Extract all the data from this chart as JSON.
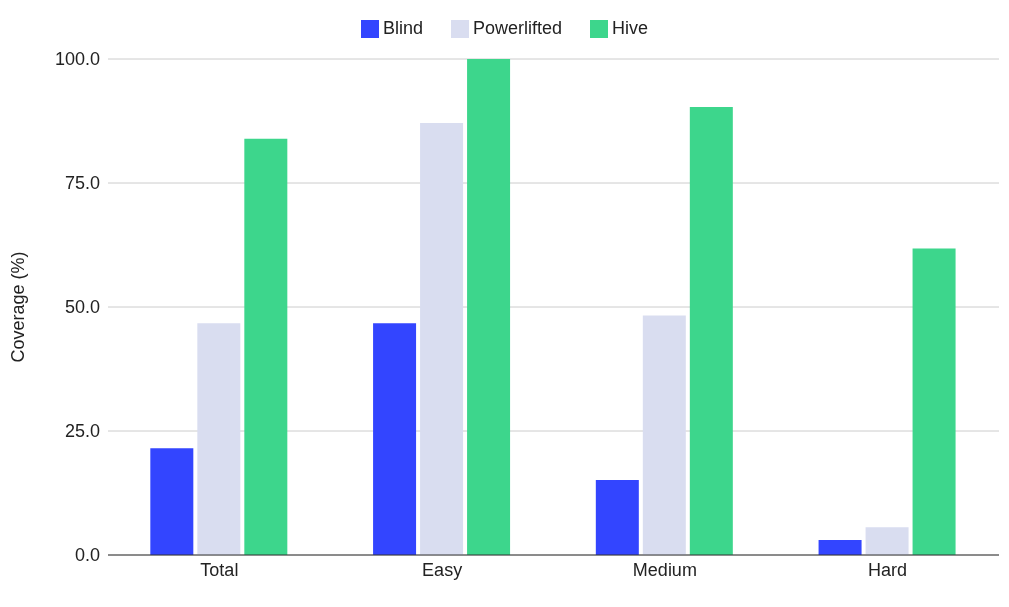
{
  "chart_data": {
    "type": "bar",
    "ylabel": "Coverage (%)",
    "categories": [
      "Total",
      "Easy",
      "Medium",
      "Hard"
    ],
    "series": [
      {
        "name": "Blind",
        "color": "#3345ff",
        "values": [
          21.5,
          46.7,
          15.1,
          3.0
        ]
      },
      {
        "name": "Powerlifted",
        "color": "#d9ddf0",
        "values": [
          46.7,
          87.1,
          48.3,
          5.6
        ]
      },
      {
        "name": "Hive",
        "color": "#3dd68c",
        "values": [
          83.9,
          100,
          90.3,
          61.8
        ]
      }
    ],
    "ylim": [
      0,
      100
    ],
    "yticks": [
      {
        "value": 0,
        "label": "0.0"
      },
      {
        "value": 25,
        "label": "25.0"
      },
      {
        "value": 50,
        "label": "50.0"
      },
      {
        "value": 75,
        "label": "75.0"
      },
      {
        "value": 100,
        "label": "100.0"
      }
    ],
    "grid": "y",
    "legend": "top"
  }
}
